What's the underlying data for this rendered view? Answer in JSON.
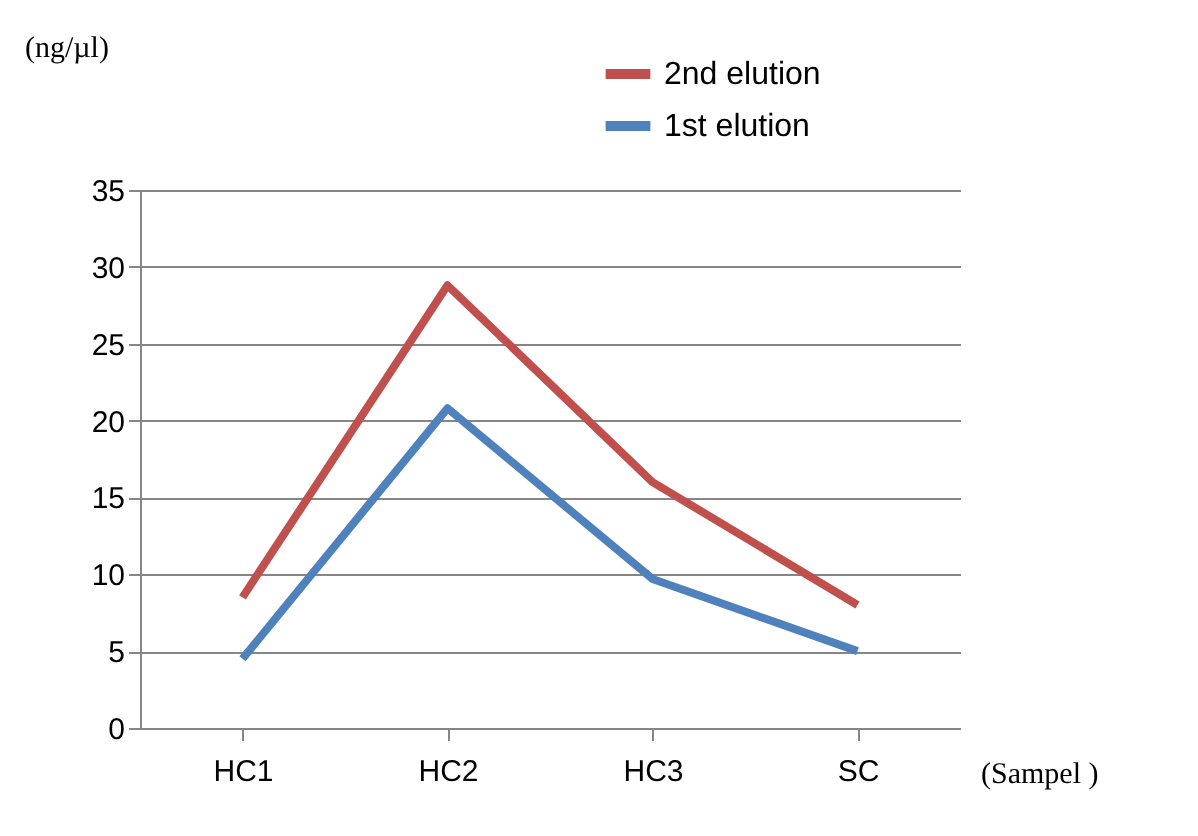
{
  "chart_data": {
    "type": "line",
    "xlabel": "(Sampel )",
    "ylabel": "(ng/µl)",
    "categories": [
      "HC1",
      "HC2",
      "HC3",
      "SC"
    ],
    "series": [
      {
        "name": "2nd elution",
        "color": "#c0504d",
        "values": [
          8.5,
          28.8,
          16,
          8
        ]
      },
      {
        "name": "1st elution",
        "color": "#4f81bd",
        "values": [
          4.5,
          20.8,
          9.7,
          5
        ]
      }
    ],
    "ylim": [
      0,
      35
    ],
    "yticks": [
      0,
      5,
      10,
      15,
      20,
      25,
      30,
      35
    ],
    "grid": "y",
    "legend": "top right",
    "marker": "none",
    "line_style": "solid"
  }
}
